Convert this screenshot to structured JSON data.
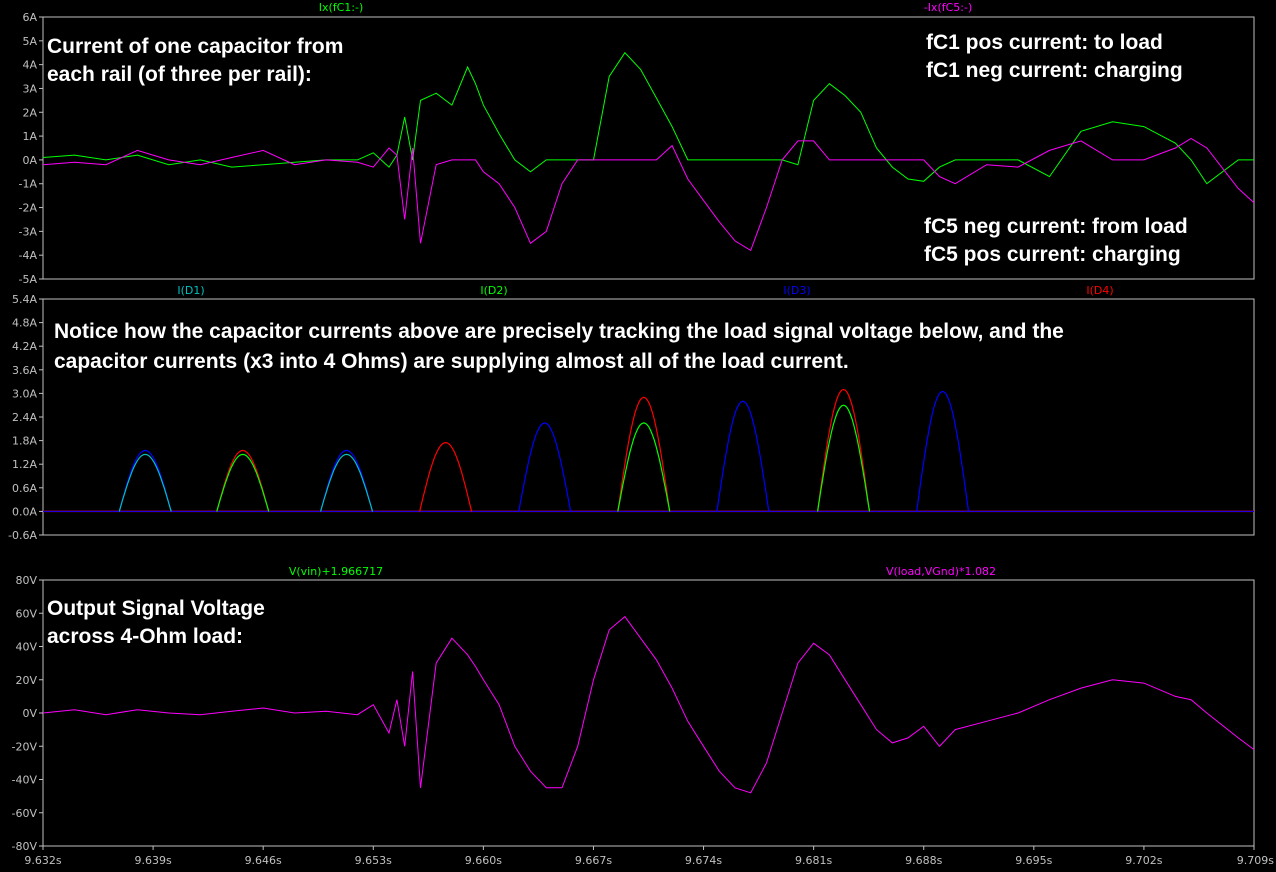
{
  "chart_data": [
    {
      "type": "line",
      "panel": "capacitor-currents",
      "ylim": [
        -5,
        6
      ],
      "yticks": [
        "6A",
        "5A",
        "4A",
        "3A",
        "2A",
        "1A",
        "0A",
        "-1A",
        "-2A",
        "-3A",
        "-4A",
        "-5A"
      ],
      "trace_labels": [
        {
          "text": "Ix(fC1:-)",
          "color": "#00ff00"
        },
        {
          "text": "-Ix(fC5:-)",
          "color": "#ff00ff"
        }
      ],
      "annotations": {
        "left": [
          "Current of one capacitor from",
          "each rail (of three per rail):"
        ],
        "top_right": [
          "fC1 pos current: to load",
          "fC1 neg current: charging"
        ],
        "bottom_right": [
          "fC5 neg current: from load",
          "fC5 pos current: charging"
        ]
      },
      "series": [
        {
          "name": "Ix(fC1:-)",
          "color": "#00ff00",
          "x": [
            9.632,
            9.634,
            9.636,
            9.638,
            9.64,
            9.642,
            9.644,
            9.646,
            9.648,
            9.65,
            9.652,
            9.653,
            9.654,
            9.6545,
            9.655,
            9.6555,
            9.656,
            9.657,
            9.658,
            9.659,
            9.6595,
            9.66,
            9.661,
            9.662,
            9.663,
            9.664,
            9.665,
            9.666,
            9.667,
            9.668,
            9.669,
            9.67,
            9.671,
            9.672,
            9.673,
            9.674,
            9.675,
            9.676,
            9.677,
            9.678,
            9.679,
            9.68,
            9.681,
            9.682,
            9.683,
            9.684,
            9.685,
            9.686,
            9.687,
            9.688,
            9.689,
            9.69,
            9.692,
            9.694,
            9.696,
            9.698,
            9.7,
            9.702,
            9.704,
            9.705,
            9.706,
            9.708,
            9.709
          ],
          "y": [
            0.1,
            0.2,
            0,
            0.2,
            -0.2,
            0,
            -0.3,
            -0.2,
            -0.1,
            0,
            0,
            0.3,
            -0.3,
            0.2,
            1.8,
            0,
            2.5,
            2.8,
            2.3,
            3.9,
            3.2,
            2.3,
            1.1,
            0,
            -0.5,
            0,
            0,
            0,
            0,
            3.5,
            4.5,
            3.8,
            2.6,
            1.4,
            0,
            0,
            0,
            0,
            0,
            0,
            0,
            -0.2,
            2.5,
            3.2,
            2.7,
            2.0,
            0.5,
            -0.3,
            -0.8,
            -0.9,
            -0.3,
            0,
            0,
            0,
            -0.7,
            1.2,
            1.6,
            1.4,
            0.7,
            0,
            -1,
            0,
            0
          ]
        },
        {
          "name": "-Ix(fC5:-)",
          "color": "#ff00ff",
          "x": [
            9.632,
            9.634,
            9.636,
            9.638,
            9.64,
            9.642,
            9.644,
            9.646,
            9.648,
            9.65,
            9.652,
            9.653,
            9.654,
            9.6545,
            9.655,
            9.6555,
            9.656,
            9.657,
            9.658,
            9.659,
            9.6595,
            9.66,
            9.661,
            9.662,
            9.663,
            9.664,
            9.665,
            9.666,
            9.667,
            9.668,
            9.669,
            9.67,
            9.671,
            9.672,
            9.673,
            9.674,
            9.675,
            9.676,
            9.677,
            9.678,
            9.679,
            9.68,
            9.681,
            9.682,
            9.683,
            9.684,
            9.685,
            9.686,
            9.687,
            9.688,
            9.689,
            9.69,
            9.692,
            9.694,
            9.696,
            9.698,
            9.7,
            9.702,
            9.704,
            9.705,
            9.706,
            9.708,
            9.709
          ],
          "y": [
            -0.2,
            -0.1,
            -0.2,
            0.4,
            0,
            -0.2,
            0.1,
            0.4,
            -0.2,
            0,
            -0.1,
            -0.3,
            0.5,
            0.2,
            -2.5,
            0.5,
            -3.5,
            -0.2,
            0,
            0,
            0,
            -0.5,
            -1,
            -2,
            -3.5,
            -3,
            -1,
            0,
            0,
            0,
            0,
            0,
            0,
            0.6,
            -0.8,
            -1.7,
            -2.6,
            -3.4,
            -3.8,
            -2,
            0,
            0.8,
            0.8,
            0,
            0,
            0,
            0,
            0,
            0,
            0,
            -0.7,
            -1.0,
            -0.2,
            -0.3,
            0.4,
            0.8,
            0,
            0,
            0.5,
            0.9,
            0.5,
            -1.2,
            -1.8
          ]
        }
      ]
    },
    {
      "type": "line",
      "panel": "diode-currents",
      "ylim": [
        -0.6,
        5.4
      ],
      "yticks": [
        "5.4A",
        "4.8A",
        "4.2A",
        "3.6A",
        "3.0A",
        "2.4A",
        "1.8A",
        "1.2A",
        "0.6A",
        "0.0A",
        "-0.6A"
      ],
      "trace_labels": [
        {
          "text": "I(D1)",
          "color": "#00c0c0"
        },
        {
          "text": "I(D2)",
          "color": "#00ff00"
        },
        {
          "text": "I(D3)",
          "color": "#0000ff"
        },
        {
          "text": "I(D4)",
          "color": "#ff0000"
        }
      ],
      "annotations": {
        "lines": [
          "Notice how the capacitor currents above are precisely tracking the load signal voltage below, and the",
          "capacitor currents (x3 into 4 Ohms) are supplying almost all of the load current."
        ]
      },
      "pulses": [
        {
          "center": 9.6385,
          "width": 0.0033,
          "peaks": {
            "I(D1)": 1.45,
            "I(D3)": 1.55
          }
        },
        {
          "center": 9.6447,
          "width": 0.0033,
          "peaks": {
            "I(D2)": 1.45,
            "I(D4)": 1.55
          }
        },
        {
          "center": 9.6513,
          "width": 0.0033,
          "peaks": {
            "I(D1)": 1.45,
            "I(D3)": 1.55
          }
        },
        {
          "center": 9.6576,
          "width": 0.0033,
          "peaks": {
            "I(D4)": 1.75
          }
        },
        {
          "center": 9.6639,
          "width": 0.0033,
          "peaks": {
            "I(D3)": 2.25
          }
        },
        {
          "center": 9.6702,
          "width": 0.0033,
          "peaks": {
            "I(D2)": 2.25,
            "I(D4)": 2.9
          }
        },
        {
          "center": 9.6765,
          "width": 0.0033,
          "peaks": {
            "I(D3)": 2.8
          }
        },
        {
          "center": 9.6829,
          "width": 0.0033,
          "peaks": {
            "I(D2)": 2.7,
            "I(D4)": 3.1
          }
        },
        {
          "center": 9.6892,
          "width": 0.0033,
          "peaks": {
            "I(D3)": 3.05
          }
        }
      ]
    },
    {
      "type": "line",
      "panel": "output-voltage",
      "ylim": [
        -80,
        80
      ],
      "yticks": [
        "80V",
        "60V",
        "40V",
        "20V",
        "0V",
        "-20V",
        "-40V",
        "-60V",
        "-80V"
      ],
      "xlim": [
        9.632,
        9.709
      ],
      "xticks": [
        "9.632s",
        "9.639s",
        "9.646s",
        "9.653s",
        "9.660s",
        "9.667s",
        "9.674s",
        "9.681s",
        "9.688s",
        "9.695s",
        "9.702s",
        "9.709s"
      ],
      "trace_labels": [
        {
          "text": "V(vin)+1.966717",
          "color": "#00ff00"
        },
        {
          "text": "V(load,VGnd)*1.082",
          "color": "#ff00ff"
        }
      ],
      "annotations": {
        "left": [
          "Output Signal Voltage",
          "across 4-Ohm load:"
        ]
      },
      "series": [
        {
          "name": "V(load,VGnd)*1.082",
          "color": "#ff00ff",
          "x": [
            9.632,
            9.634,
            9.636,
            9.638,
            9.64,
            9.642,
            9.644,
            9.646,
            9.648,
            9.65,
            9.652,
            9.653,
            9.654,
            9.6545,
            9.655,
            9.6555,
            9.656,
            9.657,
            9.658,
            9.659,
            9.6595,
            9.66,
            9.661,
            9.662,
            9.663,
            9.664,
            9.665,
            9.666,
            9.667,
            9.668,
            9.669,
            9.67,
            9.671,
            9.672,
            9.673,
            9.674,
            9.675,
            9.676,
            9.677,
            9.678,
            9.679,
            9.68,
            9.681,
            9.682,
            9.683,
            9.684,
            9.685,
            9.686,
            9.687,
            9.688,
            9.689,
            9.69,
            9.692,
            9.694,
            9.696,
            9.698,
            9.7,
            9.702,
            9.704,
            9.705,
            9.706,
            9.708,
            9.709
          ],
          "y": [
            0,
            2,
            -1,
            2,
            0,
            -1,
            1,
            3,
            0,
            1,
            -1,
            5,
            -12,
            8,
            -20,
            25,
            -45,
            30,
            45,
            35,
            28,
            20,
            5,
            -20,
            -35,
            -45,
            -45,
            -20,
            20,
            50,
            58,
            45,
            32,
            15,
            -5,
            -20,
            -35,
            -45,
            -48,
            -30,
            0,
            30,
            42,
            35,
            20,
            5,
            -10,
            -18,
            -15,
            -8,
            -20,
            -10,
            -5,
            0,
            8,
            15,
            20,
            18,
            10,
            8,
            0,
            -15,
            -22
          ]
        }
      ]
    }
  ]
}
